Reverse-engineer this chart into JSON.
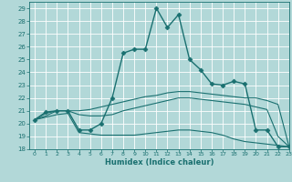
{
  "title": "",
  "xlabel": "Humidex (Indice chaleur)",
  "ylabel": "",
  "background_color": "#b2d8d8",
  "grid_color": "#ffffff",
  "line_color": "#1a7070",
  "xlim": [
    -0.5,
    23
  ],
  "ylim": [
    18,
    29.5
  ],
  "xticks": [
    0,
    1,
    2,
    3,
    4,
    5,
    6,
    7,
    8,
    9,
    10,
    11,
    12,
    13,
    14,
    15,
    16,
    17,
    18,
    19,
    20,
    21,
    22,
    23
  ],
  "yticks": [
    18,
    19,
    20,
    21,
    22,
    23,
    24,
    25,
    26,
    27,
    28,
    29
  ],
  "lines": [
    {
      "x": [
        0,
        1,
        2,
        3,
        4,
        5,
        6,
        7,
        8,
        9,
        10,
        11,
        12,
        13,
        14,
        15,
        16,
        17,
        18,
        19,
        20,
        21,
        22,
        23
      ],
      "y": [
        20.3,
        20.9,
        21.0,
        21.0,
        19.5,
        19.5,
        20.0,
        22.0,
        25.5,
        25.8,
        25.8,
        29.0,
        27.5,
        28.5,
        25.0,
        24.2,
        23.1,
        23.0,
        23.3,
        23.1,
        19.5,
        19.5,
        18.2,
        18.2
      ],
      "marker": "D",
      "markersize": 2.5,
      "linewidth": 1.0
    },
    {
      "x": [
        0,
        1,
        2,
        3,
        4,
        5,
        6,
        7,
        8,
        9,
        10,
        11,
        12,
        13,
        14,
        15,
        16,
        17,
        18,
        19,
        20,
        21,
        22,
        23
      ],
      "y": [
        20.3,
        20.8,
        21.0,
        21.0,
        21.0,
        21.1,
        21.3,
        21.5,
        21.7,
        21.9,
        22.1,
        22.2,
        22.4,
        22.5,
        22.5,
        22.4,
        22.3,
        22.2,
        22.1,
        22.0,
        22.0,
        21.8,
        21.5,
        18.2
      ],
      "marker": null,
      "markersize": 0,
      "linewidth": 0.8
    },
    {
      "x": [
        0,
        1,
        2,
        3,
        4,
        5,
        6,
        7,
        8,
        9,
        10,
        11,
        12,
        13,
        14,
        15,
        16,
        17,
        18,
        19,
        20,
        21,
        22,
        23
      ],
      "y": [
        20.3,
        20.6,
        21.0,
        21.0,
        20.7,
        20.6,
        20.6,
        20.7,
        21.0,
        21.2,
        21.4,
        21.6,
        21.8,
        22.0,
        22.0,
        21.9,
        21.8,
        21.7,
        21.6,
        21.5,
        21.3,
        21.1,
        19.0,
        18.2
      ],
      "marker": null,
      "markersize": 0,
      "linewidth": 0.8
    },
    {
      "x": [
        0,
        1,
        2,
        3,
        4,
        5,
        6,
        7,
        8,
        9,
        10,
        11,
        12,
        13,
        14,
        15,
        16,
        17,
        18,
        19,
        20,
        21,
        22,
        23
      ],
      "y": [
        20.3,
        20.5,
        20.7,
        20.8,
        19.3,
        19.2,
        19.1,
        19.1,
        19.1,
        19.1,
        19.2,
        19.3,
        19.4,
        19.5,
        19.5,
        19.4,
        19.3,
        19.1,
        18.8,
        18.6,
        18.5,
        18.4,
        18.3,
        18.2
      ],
      "marker": null,
      "markersize": 0,
      "linewidth": 0.8
    }
  ]
}
